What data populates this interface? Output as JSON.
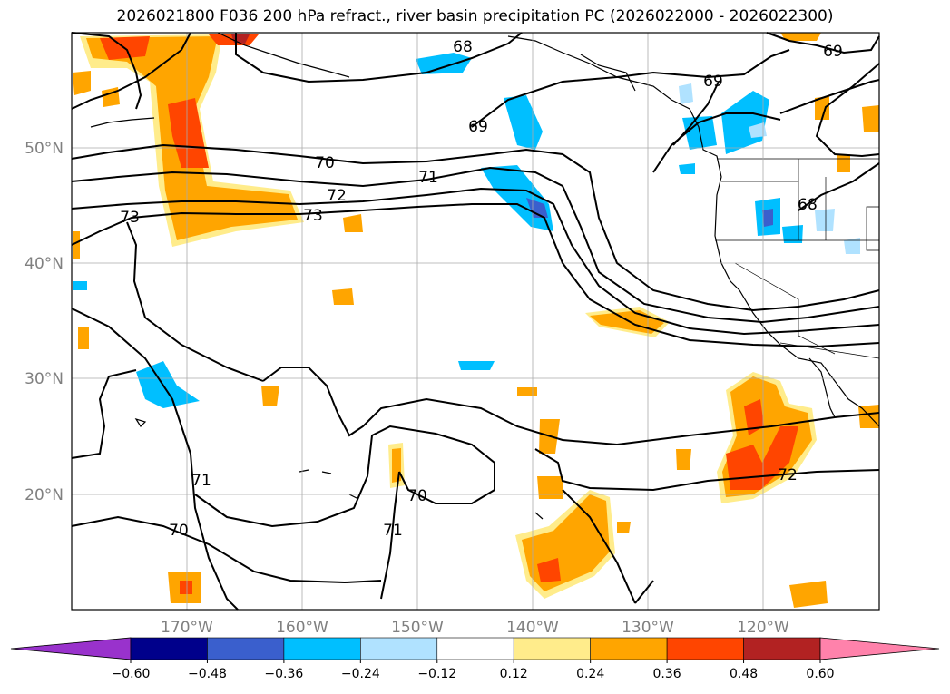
{
  "title": "2026021800 F036 200 hPa refract., river basin precipitation PC (2026022000 - 2026022300)",
  "map": {
    "lat_labels": [
      "50°N",
      "40°N",
      "30°N",
      "20°N"
    ],
    "lon_labels": [
      "170°W",
      "160°W",
      "150°W",
      "140°W",
      "130°W",
      "120°W"
    ],
    "contour_labels": [
      "68",
      "69",
      "69",
      "69",
      "70",
      "71",
      "72",
      "73",
      "73",
      "68",
      "71",
      "70",
      "70",
      "71",
      "72"
    ],
    "grid": true
  },
  "colorbar": {
    "ticks": [
      "−0.60",
      "−0.48",
      "−0.36",
      "−0.24",
      "−0.12",
      "0.12",
      "0.24",
      "0.36",
      "0.48",
      "0.60"
    ],
    "colors": [
      "#9932cc",
      "#00008b",
      "#3a5fcd",
      "#00bfff",
      "#b0e2ff",
      "#ffffff",
      "#ffec8b",
      "#ffa500",
      "#ff4500",
      "#b22222",
      "#ff82ab"
    ]
  }
}
